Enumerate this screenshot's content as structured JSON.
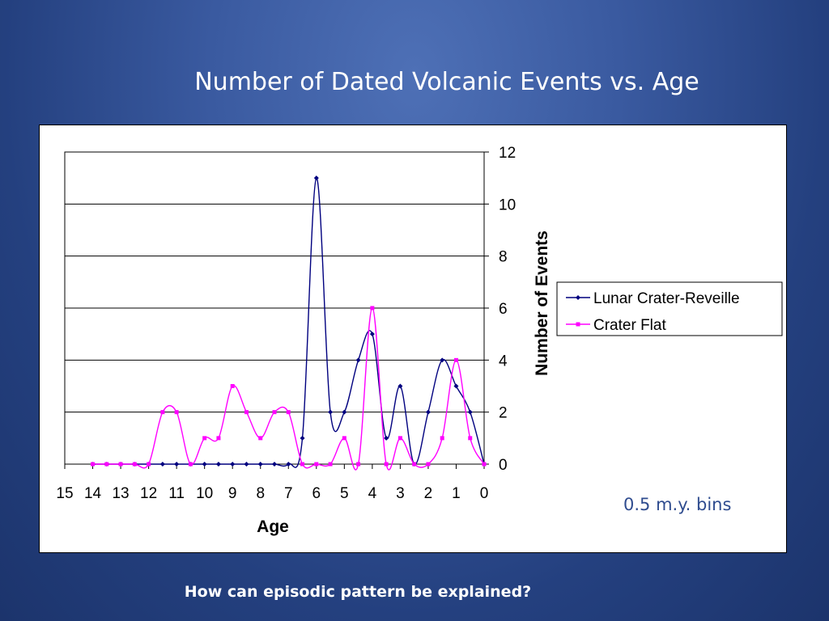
{
  "slide": {
    "title": "Number of Dated Volcanic Events vs. Age",
    "note": "0.5 m.y. bins",
    "question": "How can episodic pattern be explained?"
  },
  "colors": {
    "series1": "#00007f",
    "series2": "#ff00ff"
  },
  "chart_data": {
    "type": "line",
    "xlabel": "Age",
    "ylabel": "Number of Events",
    "xlim": [
      15,
      0
    ],
    "ylim": [
      0,
      12
    ],
    "x_reversed": true,
    "x_ticks": [
      15,
      14,
      13,
      12,
      11,
      10,
      9,
      8,
      7,
      6,
      5,
      4,
      3,
      2,
      1,
      0
    ],
    "y_ticks": [
      0,
      2,
      4,
      6,
      8,
      10,
      12
    ],
    "grid": "horizontal",
    "y_axis_side": "right",
    "legend_position": "right",
    "x": [
      14,
      13.5,
      13,
      12.5,
      12,
      11.5,
      11,
      10.5,
      10,
      9.5,
      9,
      8.5,
      8,
      7.5,
      7,
      6.5,
      6,
      5.5,
      5,
      4.5,
      4,
      3.5,
      3,
      2.5,
      2,
      1.5,
      1,
      0.5,
      0
    ],
    "series": [
      {
        "name": "Lunar Crater-Reveille",
        "marker": "diamond",
        "values": [
          0,
          0,
          0,
          0,
          0,
          0,
          0,
          0,
          0,
          0,
          0,
          0,
          0,
          0,
          0,
          1,
          11,
          2,
          2,
          4,
          5,
          1,
          3,
          0,
          2,
          4,
          3,
          2,
          0
        ]
      },
      {
        "name": "Crater Flat",
        "marker": "square",
        "values": [
          0,
          0,
          0,
          0,
          0,
          2,
          2,
          0,
          1,
          1,
          3,
          2,
          1,
          2,
          2,
          0,
          0,
          0,
          1,
          0,
          6,
          0,
          1,
          0,
          0,
          1,
          4,
          1,
          0
        ]
      }
    ]
  }
}
